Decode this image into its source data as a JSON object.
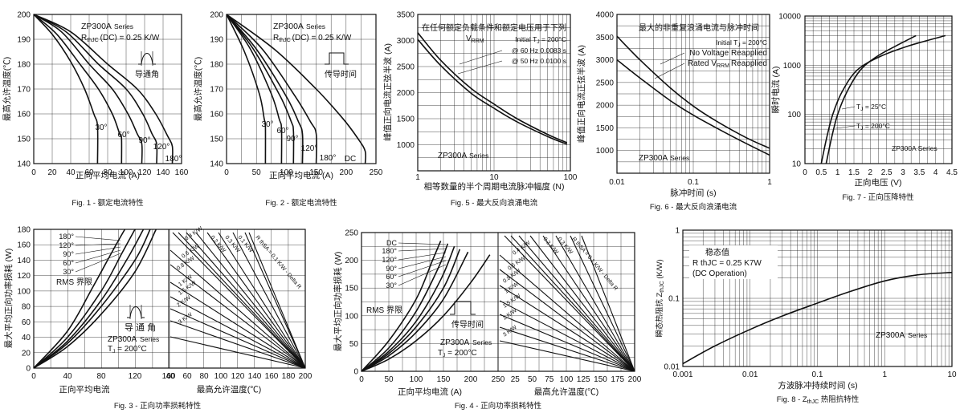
{
  "figures": {
    "fig1": {
      "caption": "Fig. 1 - 额定电流特性",
      "ylabel": "最高允许温度(℃)",
      "xlabel": "正向平均电流 (A)",
      "series_text": "ZP300A",
      "series_suffix": "Series",
      "rth": "R",
      "rth_sub": "thJC",
      "rth_val": "(DC) = 0.25 K/W",
      "inset": "导通角",
      "x_ticks": [
        "0",
        "20",
        "40",
        "60",
        "80",
        "100",
        "120",
        "140",
        "160"
      ],
      "y_ticks": [
        "140",
        "150",
        "160",
        "170",
        "180",
        "190",
        "200"
      ],
      "labels": [
        "30°",
        "60°",
        "90°",
        "120°",
        "180°"
      ]
    },
    "fig2": {
      "caption": "Fig. 2 - 额定电流特性",
      "ylabel": "最高允许温度(℃)",
      "xlabel": "正向平均电流 (A)",
      "series_text": "ZP300A",
      "series_suffix": "Series",
      "rth": "R",
      "rth_sub": "thJC",
      "rth_val": "(DC) = 0.25 K/W",
      "inset": "传导时间",
      "x_ticks": [
        "0",
        "50",
        "100",
        "150",
        "200",
        "250"
      ],
      "y_ticks": [
        "140",
        "150",
        "160",
        "170",
        "180",
        "190",
        "200"
      ],
      "labels": [
        "30°",
        "60°",
        "90°",
        "120°",
        "180°",
        "DC"
      ]
    },
    "fig5": {
      "caption": "Fig. 5 - 最大反向浪涌电流",
      "ylabel": "峰值正向电流正弦半波 (A)",
      "xlabel": "相等数量的半个周期电流脉冲幅度 (N)",
      "title": "在任何额定负载条件和额定电压用于下列",
      "vrrm": "V",
      "vrrm_sub": "RRM",
      "initial": "Initial T",
      "initial_sub": "J",
      "initial_val": " = 200°C",
      "hz60": "@ 60 Hz 0.0083 s",
      "hz50": "@ 50 Hz 0.0100 s",
      "series_text": "ZP300A",
      "series_suffix": "Series",
      "x_ticks": [
        "1",
        "10",
        "100"
      ],
      "y_ticks": [
        "1000",
        "1500",
        "2000",
        "2500",
        "3000",
        "3500"
      ]
    },
    "fig6": {
      "caption": "Fig. 6 - 最大反向浪涌电流",
      "ylabel": "峰值正向电流正弦半波 (A)",
      "xlabel": "脉冲时间 (s)",
      "title": "最大的非重复浪涌电流与脉冲时间",
      "initial": "Initial T",
      "initial_sub": "J",
      "initial_val": " = 200°C",
      "no_voltage": "No Voltage Reapplied",
      "rated": "Rated V",
      "rated_sub": "RRM",
      "rated_suffix": "Reapplied",
      "series_text": "ZP300A",
      "series_suffix": "Series",
      "x_ticks": [
        "0.01",
        "0.1",
        "1"
      ],
      "y_ticks": [
        "1000",
        "1500",
        "2000",
        "2500",
        "3000",
        "3500",
        "4000"
      ]
    },
    "fig7": {
      "caption": "Fig. 7 - 正向压降特性",
      "ylabel": "瞬时电流 (A)",
      "xlabel": "正向电压 (V)",
      "tj25": "T",
      "tj25_sub": "J",
      "tj25_val": " = 25°C",
      "tj200": "T",
      "tj200_sub": "J",
      "tj200_val": " = 200°C",
      "series_text": "ZP300A Series",
      "x_ticks": [
        "0",
        "0.5",
        "1",
        "1.5",
        "2",
        "2.5",
        "3",
        "3.5",
        "4",
        "4.5"
      ],
      "y_ticks": [
        "10",
        "100",
        "1000",
        "10000"
      ]
    },
    "fig3": {
      "caption": "Fig. 3 - 正向功率损耗特性",
      "ylabel": "最大平均正向功率损耗 (W)",
      "xlabel_left": "正向平均电流",
      "xlabel_right": "最高允许温度(℃)",
      "rms": "RMS 界限",
      "inset": "导 通 角",
      "series_text": "ZP300A",
      "series_suffix": "Series",
      "tj": "T",
      "tj_sub": "J",
      "tj_val": " = 200°C",
      "x_ticks_left": [
        "0",
        "40",
        "80",
        "120",
        "160"
      ],
      "x_ticks_right": [
        "40",
        "60",
        "80",
        "100",
        "120",
        "140",
        "160",
        "180",
        "200"
      ],
      "y_ticks": [
        "0",
        "20",
        "40",
        "60",
        "80",
        "100",
        "120",
        "140",
        "160",
        "180"
      ],
      "labels": [
        "180°",
        "120°",
        "90°",
        "60°",
        "30°"
      ],
      "k_labels": [
        "0.4 K/W",
        "0.6 K/W",
        "0.8 K/W",
        "1 K/W",
        "1.5 K/W",
        "2 K/W",
        "3 K/W"
      ],
      "k_top": [
        "0.2 K/W",
        "0.3 K/W",
        "0.1 K/W"
      ],
      "r_delta": "R thSA = 0.1 K/W - Delta R"
    },
    "fig4": {
      "caption": "Fig. 4 - 正向功率损耗特性",
      "ylabel": "最大平均正向功率损耗 (W)",
      "xlabel_left": "正向平均电流 (A)",
      "xlabel_right": "最高允许温度(℃)",
      "rms": "RMS 界限",
      "inset": "传导时间",
      "series_text": "ZP300A",
      "series_suffix": "Series",
      "tj": "T",
      "tj_sub": "J",
      "tj_val": " = 200°C",
      "x_ticks_left": [
        "0",
        "50",
        "100",
        "150",
        "200",
        "250"
      ],
      "x_ticks_right": [
        "25",
        "50",
        "75",
        "100",
        "125",
        "150",
        "175",
        "200"
      ],
      "y_ticks": [
        "0",
        "50",
        "100",
        "150",
        "200",
        "250"
      ],
      "labels": [
        "DC",
        "180°",
        "120°",
        "90°",
        "60°",
        "30°"
      ],
      "k_labels": [
        "0.4 K/W",
        "0.6 K/W",
        "0.8 K/W",
        "1 K/W",
        "1.5 K/W",
        "2 K/W",
        "3 K/W"
      ],
      "k_top": [
        "0.2 K/W",
        "0.3 K/W"
      ],
      "r_delta": "R thSA = 0.1 K/W - Delta R"
    },
    "fig8": {
      "caption": "Fig. 8 - Z",
      "caption_sub": "thJC",
      "caption_suffix": " 热阻抗特性",
      "ylabel": "瞬态热阻抗 Z",
      "ylabel_sub": "thJC",
      "ylabel_unit": " (K/W)",
      "xlabel": "方波脉冲持续时间 (s)",
      "steady": "稳态值",
      "rth": "R thJC = 0.25 K7W",
      "dcop": "(DC Operation)",
      "series_text": "ZP300A",
      "series_suffix": "Series",
      "x_ticks": [
        "0.001",
        "0.01",
        "0.1",
        "1",
        "10"
      ],
      "y_ticks": [
        "0.01",
        "0.1",
        "1"
      ]
    }
  },
  "chart_data": [
    {
      "type": "line",
      "id": "fig1",
      "xlim": [
        0,
        160
      ],
      "ylim": [
        140,
        200
      ],
      "series": [
        {
          "name": "30°",
          "x": [
            0,
            20,
            40,
            55,
            65,
            69,
            69
          ],
          "y": [
            200,
            192,
            181,
            170,
            160,
            155,
            140
          ]
        },
        {
          "name": "60°",
          "x": [
            0,
            25,
            50,
            70,
            85,
            93,
            95,
            95
          ],
          "y": [
            200,
            192,
            180,
            170,
            160,
            152,
            150,
            140
          ]
        },
        {
          "name": "90°",
          "x": [
            0,
            30,
            60,
            85,
            102,
            112,
            117,
            117
          ],
          "y": [
            200,
            193,
            180,
            170,
            160,
            152,
            148,
            140
          ]
        },
        {
          "name": "120°",
          "x": [
            0,
            35,
            70,
            100,
            118,
            128,
            133,
            133
          ],
          "y": [
            200,
            193,
            180,
            170,
            160,
            152,
            148,
            140
          ]
        },
        {
          "name": "180°",
          "x": [
            0,
            40,
            80,
            112,
            132,
            145,
            150,
            150
          ],
          "y": [
            200,
            193,
            180,
            170,
            160,
            151,
            147,
            140
          ]
        }
      ]
    },
    {
      "type": "line",
      "id": "fig2",
      "xlim": [
        0,
        250
      ],
      "ylim": [
        140,
        200
      ],
      "series": [
        {
          "name": "30°",
          "x": [
            0,
            30,
            55,
            63,
            65,
            65
          ],
          "y": [
            200,
            185,
            168,
            158,
            155,
            140
          ]
        },
        {
          "name": "60°",
          "x": [
            0,
            40,
            75,
            88,
            92,
            92
          ],
          "y": [
            200,
            186,
            168,
            158,
            154,
            140
          ]
        },
        {
          "name": "90°",
          "x": [
            0,
            45,
            90,
            108,
            112,
            112
          ],
          "y": [
            200,
            186,
            167,
            157,
            153,
            140
          ]
        },
        {
          "name": "120°",
          "x": [
            0,
            50,
            100,
            120,
            127,
            127
          ],
          "y": [
            200,
            186,
            167,
            157,
            152,
            140
          ]
        },
        {
          "name": "180°",
          "x": [
            0,
            60,
            115,
            140,
            150,
            150
          ],
          "y": [
            200,
            186,
            167,
            157,
            152,
            140
          ]
        },
        {
          "name": "DC",
          "x": [
            0,
            80,
            150,
            195,
            220,
            232,
            232
          ],
          "y": [
            200,
            186,
            170,
            158,
            150,
            145,
            140
          ]
        }
      ]
    },
    {
      "type": "line",
      "id": "fig5",
      "xscale": "log",
      "xlim": [
        1,
        100
      ],
      "ylim": [
        500,
        3500
      ],
      "series": [
        {
          "x": [
            1,
            2,
            5,
            10,
            20,
            50,
            90
          ],
          "y": [
            3150,
            2620,
            2080,
            1780,
            1500,
            1200,
            1040
          ]
        },
        {
          "x": [
            1,
            2,
            5,
            10,
            20,
            50,
            90
          ],
          "y": [
            3020,
            2520,
            1990,
            1700,
            1440,
            1160,
            1010
          ]
        }
      ]
    },
    {
      "type": "line",
      "id": "fig6",
      "xscale": "log",
      "xlim": [
        0.01,
        1
      ],
      "ylim": [
        500,
        4000
      ],
      "series": [
        {
          "name": "No Voltage Reapplied",
          "x": [
            0.01,
            0.02,
            0.05,
            0.1,
            0.2,
            0.5,
            1
          ],
          "y": [
            3520,
            3000,
            2380,
            1980,
            1650,
            1280,
            1050
          ]
        },
        {
          "name": "Rated VRRM Reapplied",
          "x": [
            0.01,
            0.02,
            0.05,
            0.1,
            0.2,
            0.5,
            1
          ],
          "y": [
            3000,
            2600,
            2100,
            1780,
            1500,
            1150,
            900
          ]
        }
      ]
    },
    {
      "type": "line",
      "id": "fig7",
      "yscale": "log",
      "xlim": [
        0,
        4.5
      ],
      "ylim": [
        10,
        10000
      ],
      "series": [
        {
          "name": "TJ = 25°C",
          "x": [
            0.65,
            0.8,
            1.0,
            1.3,
            1.7,
            2.2,
            2.8,
            3.4
          ],
          "y": [
            10,
            30,
            100,
            300,
            800,
            1500,
            2500,
            4000
          ]
        },
        {
          "name": "TJ = 200°C",
          "x": [
            0.5,
            0.65,
            0.85,
            1.15,
            1.6,
            2.3,
            3.2,
            4.3
          ],
          "y": [
            10,
            30,
            100,
            300,
            800,
            1500,
            2500,
            4000
          ]
        }
      ]
    },
    {
      "type": "line",
      "id": "fig3",
      "xlim": [
        0,
        160
      ],
      "ylim": [
        0,
        180
      ],
      "series": [
        {
          "name": "180°",
          "x": [
            0,
            40,
            80,
            120,
            145
          ],
          "y": [
            0,
            28,
            70,
            125,
            180
          ]
        },
        {
          "name": "120°",
          "x": [
            0,
            40,
            80,
            120,
            138
          ],
          "y": [
            0,
            32,
            80,
            140,
            180
          ]
        },
        {
          "name": "90°",
          "x": [
            0,
            40,
            80,
            110,
            130
          ],
          "y": [
            0,
            35,
            88,
            140,
            180
          ]
        },
        {
          "name": "60°",
          "x": [
            0,
            40,
            80,
            105,
            120
          ],
          "y": [
            0,
            40,
            100,
            150,
            180
          ]
        },
        {
          "name": "30°",
          "x": [
            0,
            40,
            70,
            95,
            108
          ],
          "y": [
            0,
            48,
            105,
            155,
            180
          ]
        }
      ]
    },
    {
      "type": "line",
      "id": "fig4",
      "xlim": [
        0,
        250
      ],
      "ylim": [
        0,
        250
      ],
      "series": [
        {
          "name": "DC",
          "x": [
            0,
            50,
            100,
            150,
            200,
            235
          ],
          "y": [
            0,
            22,
            55,
            100,
            160,
            210
          ]
        },
        {
          "name": "180°",
          "x": [
            0,
            50,
            100,
            150,
            195
          ],
          "y": [
            0,
            28,
            70,
            130,
            215
          ]
        },
        {
          "name": "120°",
          "x": [
            0,
            50,
            100,
            150,
            180
          ],
          "y": [
            0,
            32,
            80,
            150,
            220
          ]
        },
        {
          "name": "90°",
          "x": [
            0,
            50,
            100,
            145,
            170
          ],
          "y": [
            0,
            36,
            90,
            165,
            225
          ]
        },
        {
          "name": "60°",
          "x": [
            0,
            50,
            100,
            140,
            158
          ],
          "y": [
            0,
            42,
            108,
            185,
            230
          ]
        },
        {
          "name": "30°",
          "x": [
            0,
            50,
            100,
            130,
            145
          ],
          "y": [
            0,
            55,
            130,
            200,
            235
          ]
        }
      ]
    },
    {
      "type": "line",
      "id": "fig8",
      "xscale": "log",
      "yscale": "log",
      "xlim": [
        0.001,
        10
      ],
      "ylim": [
        0.01,
        1
      ],
      "series": [
        {
          "x": [
            0.001,
            0.003,
            0.01,
            0.03,
            0.1,
            0.3,
            1,
            3,
            10
          ],
          "y": [
            0.011,
            0.02,
            0.035,
            0.055,
            0.085,
            0.125,
            0.18,
            0.22,
            0.24
          ]
        }
      ]
    }
  ]
}
